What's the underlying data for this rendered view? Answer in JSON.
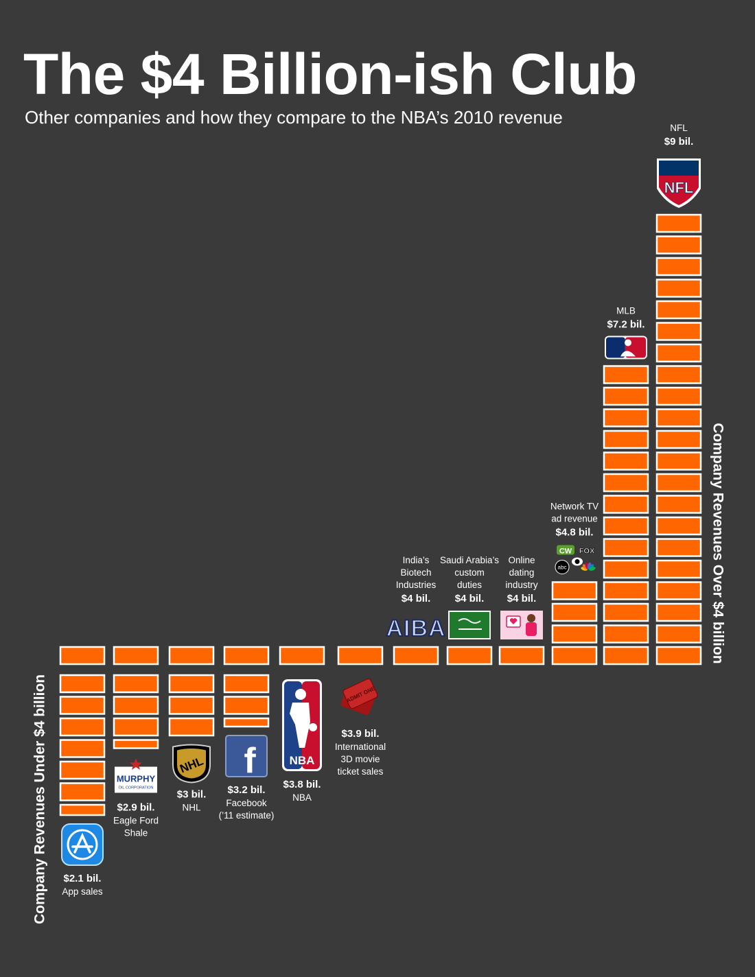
{
  "title": "The $4 Billion-ish Club",
  "subtitle": "Other companies and how they compare to the NBA’s 2010 revenue",
  "axis_labels": {
    "under": "Company Revenues Under $4 billion",
    "over": "Company Revenues Over $4 billion"
  },
  "colors": {
    "background": "#3b3a3a",
    "bar_fill": "#ff6600",
    "bar_border": "#ffffff",
    "text": "#ffffff"
  },
  "chart_data": {
    "type": "bar",
    "unit": "$ billion",
    "baseline": 4,
    "categories": [
      "App sales",
      "Eagle Ford Shale",
      "NHL",
      "Facebook ('11 estimate)",
      "NBA",
      "International 3D movie ticket sales",
      "India's Biotech Industries",
      "Saudi Arabia's custom duties",
      "Online dating industry",
      "Network TV ad revenue",
      "MLB",
      "NFL"
    ],
    "values": [
      2.1,
      2.9,
      3,
      3.2,
      3.8,
      3.9,
      4,
      4,
      4,
      4.8,
      7.2,
      9
    ],
    "items": [
      {
        "name": "App sales",
        "value": 2.1,
        "value_label": "$2.1 bil.",
        "name_lines": [
          "App sales"
        ],
        "logo": "app-store-icon"
      },
      {
        "name": "Eagle Ford Shale",
        "value": 2.9,
        "value_label": "$2.9 bil.",
        "name_lines": [
          "Eagle Ford",
          "Shale"
        ],
        "logo": "murphy-oil-logo",
        "logo_text": "MURPHY",
        "logo_subtext": "OIL CORPORATION"
      },
      {
        "name": "NHL",
        "value": 3,
        "value_label": "$3 bil.",
        "name_lines": [
          "NHL"
        ],
        "logo": "nhl-logo",
        "logo_text": "NHL"
      },
      {
        "name": "Facebook",
        "value": 3.2,
        "value_label": "$3.2 bil.",
        "name_lines": [
          "Facebook",
          "(’11 estimate)"
        ],
        "logo": "facebook-logo",
        "logo_text": "f"
      },
      {
        "name": "NBA",
        "value": 3.8,
        "value_label": "$3.8 bil.",
        "name_lines": [
          "NBA"
        ],
        "logo": "nba-logo",
        "logo_text": "NBA"
      },
      {
        "name": "International 3D movie ticket sales",
        "value": 3.9,
        "value_label": "$3.9 bil.",
        "name_lines": [
          "International",
          "3D movie",
          "ticket sales"
        ],
        "logo": "movie-ticket-icon",
        "logo_text": "ADMIT ONE"
      },
      {
        "name": "India's Biotech Industries",
        "value": 4,
        "value_label": "$4 bil.",
        "name_lines": [
          "India’s",
          "Biotech",
          "Industries"
        ],
        "logo": "aiba-logo",
        "logo_text": "AIBA"
      },
      {
        "name": "Saudi Arabia's custom duties",
        "value": 4,
        "value_label": "$4 bil.",
        "name_lines": [
          "Saudi Arabia’s",
          "custom",
          "duties"
        ],
        "logo": "saudi-flag-icon"
      },
      {
        "name": "Online dating industry",
        "value": 4,
        "value_label": "$4 bil.",
        "name_lines": [
          "Online",
          "dating",
          "industry"
        ],
        "logo": "online-dating-icon"
      },
      {
        "name": "Network TV ad revenue",
        "value": 4.8,
        "value_label": "$4.8 bil.",
        "name_lines": [
          "Network TV",
          "ad revenue"
        ],
        "logo": "tv-networks-logos",
        "logo_texts": [
          "CW",
          "FOX",
          "abc"
        ]
      },
      {
        "name": "MLB",
        "value": 7.2,
        "value_label": "$7.2 bil.",
        "name_lines": [
          "MLB"
        ],
        "logo": "mlb-logo"
      },
      {
        "name": "NFL",
        "value": 9,
        "value_label": "$9 bil.",
        "name_lines": [
          "NFL"
        ],
        "logo": "nfl-logo",
        "logo_text": "NFL"
      }
    ]
  }
}
